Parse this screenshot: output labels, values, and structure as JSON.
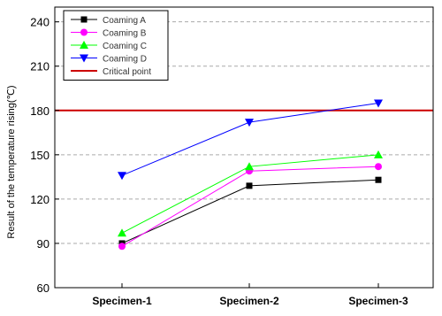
{
  "chart_data": {
    "type": "line",
    "title": "",
    "xlabel": "",
    "ylabel": "Result of the temperature rising(℃)",
    "categories": [
      "Specimen-1",
      "Specimen-2",
      "Specimen-3"
    ],
    "ylim": [
      60,
      250
    ],
    "yticks": [
      60,
      90,
      120,
      150,
      180,
      210,
      240
    ],
    "grid": "horizontal dashed",
    "legend": "top-left",
    "series": [
      {
        "name": "Coaming A",
        "values": [
          90,
          129,
          133
        ],
        "color": "#000000",
        "marker": "square"
      },
      {
        "name": "Coaming B",
        "values": [
          88,
          139,
          142
        ],
        "color": "#ff00ff",
        "marker": "circle"
      },
      {
        "name": "Coaming C",
        "values": [
          97,
          142,
          150
        ],
        "color": "#00ff00",
        "marker": "triangle-up"
      },
      {
        "name": "Coaming D",
        "values": [
          136,
          172,
          185
        ],
        "color": "#0000ff",
        "marker": "triangle-down"
      }
    ],
    "reference_line": {
      "name": "Critical point",
      "value": 180,
      "color": "#cc0000"
    }
  }
}
